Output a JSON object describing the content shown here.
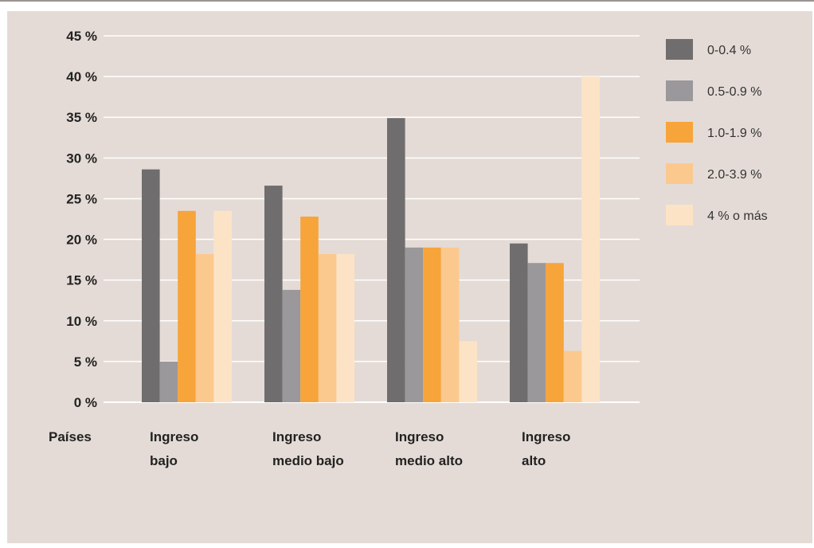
{
  "chart_data": {
    "type": "bar",
    "xlabel": "Países",
    "ylabel": "",
    "ylim": [
      0,
      45
    ],
    "yticks": [
      0,
      5,
      10,
      15,
      20,
      25,
      30,
      35,
      40,
      45
    ],
    "ytick_labels": [
      "0 %",
      "5 %",
      "10 %",
      "15 %",
      "20 %",
      "25 %",
      "30 %",
      "35 %",
      "40 %",
      "45 %"
    ],
    "grid": true,
    "legend_position": "right",
    "categories": [
      [
        "Ingreso",
        "bajo"
      ],
      [
        "Ingreso",
        "medio bajo"
      ],
      [
        "Ingreso",
        "medio alto"
      ],
      [
        "Ingreso",
        "alto"
      ]
    ],
    "series": [
      {
        "name": "0-0.4 %",
        "color": "#6f6d6e",
        "values": [
          28.6,
          26.6,
          34.9,
          19.5
        ]
      },
      {
        "name": "0.5-0.9 %",
        "color": "#9a989b",
        "values": [
          5.0,
          13.8,
          19.0,
          17.1
        ]
      },
      {
        "name": "1.0-1.9 %",
        "color": "#f7a43a",
        "values": [
          23.5,
          22.8,
          19.0,
          17.1
        ]
      },
      {
        "name": "2.0-3.9 %",
        "color": "#fbc98e",
        "values": [
          18.2,
          18.2,
          19.0,
          6.3
        ]
      },
      {
        "name": "4 % o más",
        "color": "#fde3c6",
        "values": [
          23.5,
          18.2,
          7.5,
          40.0
        ]
      }
    ]
  }
}
